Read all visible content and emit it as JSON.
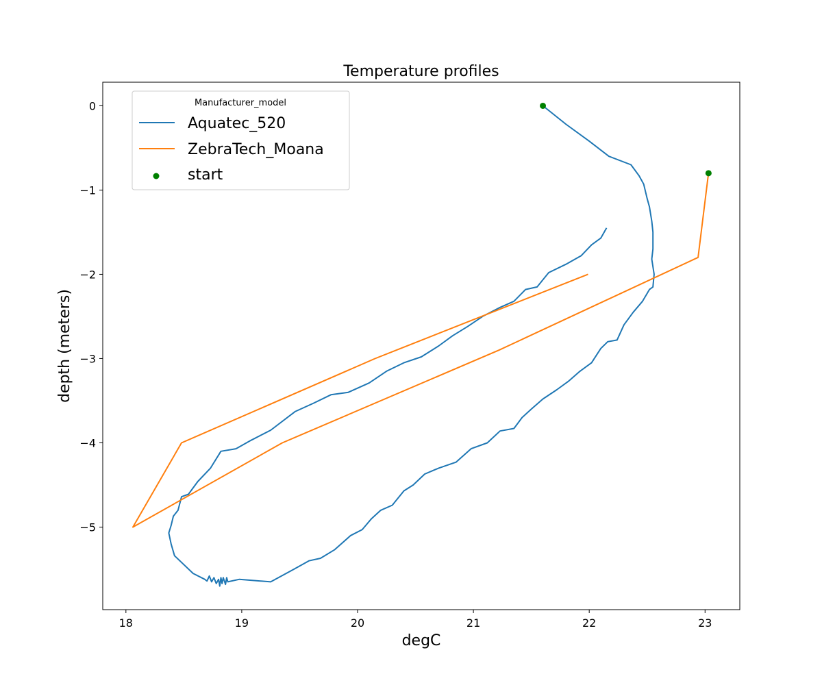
{
  "chart_data": {
    "type": "line",
    "title": "Temperature profiles",
    "xlabel": "degC",
    "ylabel": "depth (meters)",
    "xlim": [
      17.8,
      23.3
    ],
    "ylim": [
      -5.98,
      0.28
    ],
    "xticks": [
      18,
      19,
      20,
      21,
      22,
      23
    ],
    "yticks": [
      0,
      -1,
      -2,
      -3,
      -4,
      -5
    ],
    "grid": false,
    "legend": {
      "title": "Manufacturer_model",
      "placement": "upper-left"
    },
    "series": [
      {
        "name": "Aquatec_520",
        "color": "#1f77b4",
        "points": [
          [
            21.6,
            0.0
          ],
          [
            21.8,
            -0.22
          ],
          [
            22.0,
            -0.42
          ],
          [
            22.17,
            -0.6
          ],
          [
            22.36,
            -0.7
          ],
          [
            22.43,
            -0.83
          ],
          [
            22.47,
            -0.93
          ],
          [
            22.5,
            -1.1
          ],
          [
            22.52,
            -1.2
          ],
          [
            22.54,
            -1.37
          ],
          [
            22.55,
            -1.5
          ],
          [
            22.55,
            -1.7
          ],
          [
            22.54,
            -1.82
          ],
          [
            22.56,
            -2.0
          ],
          [
            22.55,
            -2.15
          ],
          [
            22.52,
            -2.18
          ],
          [
            22.46,
            -2.32
          ],
          [
            22.38,
            -2.45
          ],
          [
            22.3,
            -2.6
          ],
          [
            22.24,
            -2.78
          ],
          [
            22.16,
            -2.8
          ],
          [
            22.1,
            -2.88
          ],
          [
            22.02,
            -3.05
          ],
          [
            21.92,
            -3.15
          ],
          [
            21.82,
            -3.27
          ],
          [
            21.72,
            -3.37
          ],
          [
            21.6,
            -3.48
          ],
          [
            21.5,
            -3.6
          ],
          [
            21.42,
            -3.7
          ],
          [
            21.35,
            -3.83
          ],
          [
            21.23,
            -3.86
          ],
          [
            21.12,
            -4.0
          ],
          [
            20.98,
            -4.07
          ],
          [
            20.85,
            -4.23
          ],
          [
            20.7,
            -4.3
          ],
          [
            20.58,
            -4.37
          ],
          [
            20.48,
            -4.5
          ],
          [
            20.4,
            -4.57
          ],
          [
            20.3,
            -4.74
          ],
          [
            20.2,
            -4.8
          ],
          [
            20.12,
            -4.9
          ],
          [
            20.04,
            -5.03
          ],
          [
            19.94,
            -5.1
          ],
          [
            19.8,
            -5.27
          ],
          [
            19.68,
            -5.37
          ],
          [
            19.58,
            -5.4
          ],
          [
            19.45,
            -5.5
          ],
          [
            19.25,
            -5.65
          ],
          [
            18.98,
            -5.62
          ],
          [
            18.88,
            -5.65
          ],
          [
            18.87,
            -5.6
          ],
          [
            18.86,
            -5.68
          ],
          [
            18.84,
            -5.6
          ],
          [
            18.83,
            -5.67
          ],
          [
            18.82,
            -5.6
          ],
          [
            18.81,
            -5.7
          ],
          [
            18.8,
            -5.62
          ],
          [
            18.78,
            -5.67
          ],
          [
            18.76,
            -5.6
          ],
          [
            18.74,
            -5.65
          ],
          [
            18.72,
            -5.58
          ],
          [
            18.7,
            -5.64
          ],
          [
            18.68,
            -5.62
          ],
          [
            18.58,
            -5.55
          ],
          [
            18.42,
            -5.34
          ],
          [
            18.39,
            -5.2
          ],
          [
            18.37,
            -5.07
          ],
          [
            18.39,
            -4.98
          ],
          [
            18.41,
            -4.87
          ],
          [
            18.45,
            -4.8
          ],
          [
            18.48,
            -4.64
          ],
          [
            18.54,
            -4.61
          ],
          [
            18.62,
            -4.46
          ],
          [
            18.73,
            -4.3
          ],
          [
            18.82,
            -4.1
          ],
          [
            18.95,
            -4.07
          ],
          [
            19.08,
            -3.97
          ],
          [
            19.25,
            -3.85
          ],
          [
            19.46,
            -3.63
          ],
          [
            19.62,
            -3.53
          ],
          [
            19.77,
            -3.43
          ],
          [
            19.92,
            -3.4
          ],
          [
            20.1,
            -3.29
          ],
          [
            20.25,
            -3.15
          ],
          [
            20.4,
            -3.05
          ],
          [
            20.55,
            -2.98
          ],
          [
            20.7,
            -2.85
          ],
          [
            20.82,
            -2.73
          ],
          [
            20.95,
            -2.62
          ],
          [
            21.08,
            -2.5
          ],
          [
            21.22,
            -2.4
          ],
          [
            21.35,
            -2.32
          ],
          [
            21.45,
            -2.18
          ],
          [
            21.55,
            -2.15
          ],
          [
            21.65,
            -1.98
          ],
          [
            21.8,
            -1.88
          ],
          [
            21.93,
            -1.78
          ],
          [
            22.02,
            -1.65
          ],
          [
            22.1,
            -1.57
          ],
          [
            22.15,
            -1.45
          ]
        ]
      },
      {
        "name": "ZebraTech_Moana",
        "color": "#ff7f0e",
        "points": [
          [
            23.03,
            -0.8
          ],
          [
            22.94,
            -1.8
          ],
          [
            21.22,
            -2.9
          ],
          [
            19.35,
            -4.0
          ],
          [
            18.06,
            -5.0
          ],
          [
            18.48,
            -4.0
          ],
          [
            20.15,
            -3.0
          ],
          [
            21.99,
            -2.0
          ]
        ]
      }
    ],
    "start_markers": {
      "name": "start",
      "color": "#008000",
      "points": [
        [
          21.6,
          0.0
        ],
        [
          23.03,
          -0.8
        ]
      ]
    }
  }
}
